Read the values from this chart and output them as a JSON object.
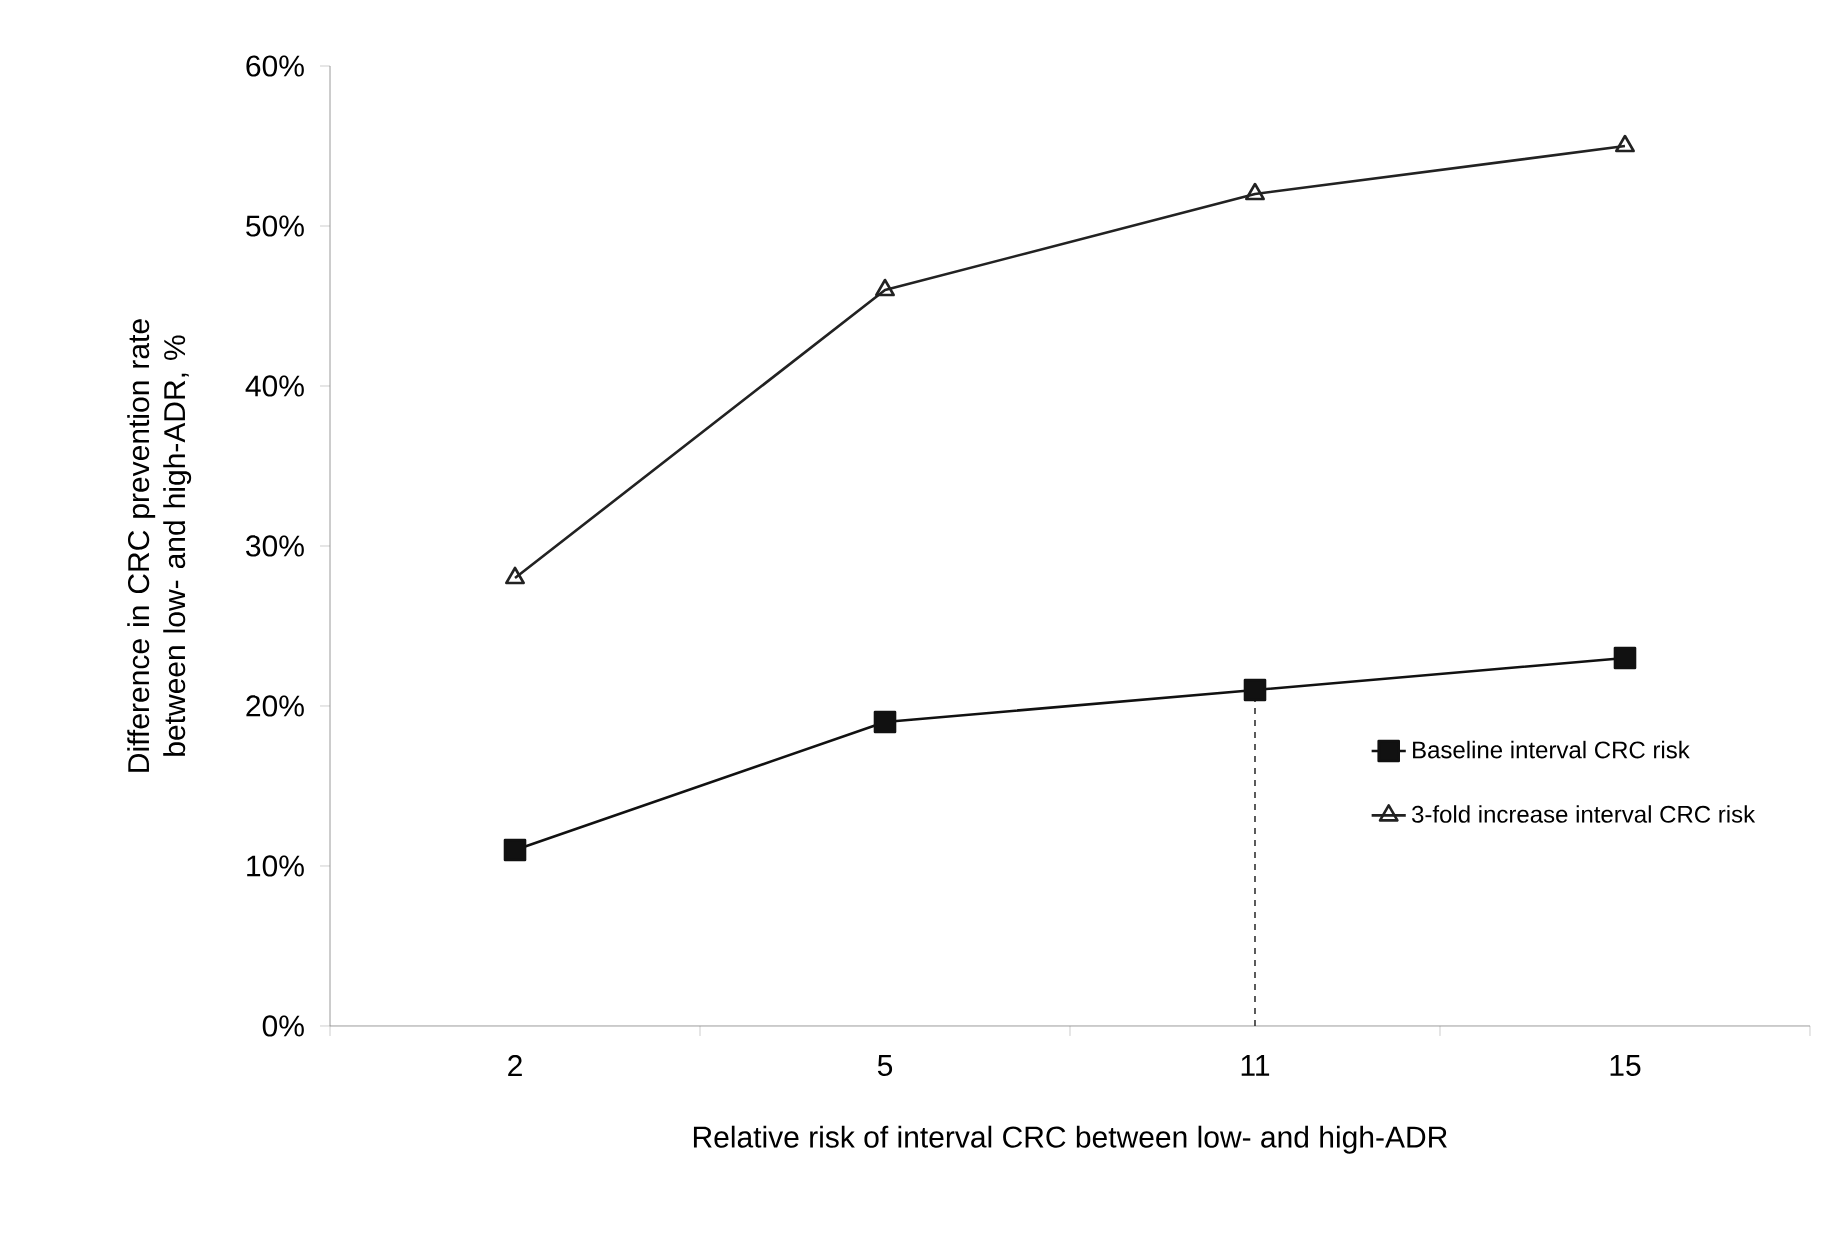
{
  "chart_data": {
    "type": "line",
    "xlabel": "Relative risk of interval CRC between low- and high-ADR",
    "ylabel": "Difference in CRC prevention rate between low- and high-ADR, %",
    "categories": [
      "2",
      "5",
      "11",
      "15"
    ],
    "series": [
      {
        "name": "Baseline interval CRC risk",
        "color": "#111111",
        "marker": "square",
        "values": [
          11,
          19,
          21,
          23
        ]
      },
      {
        "name": "3-fold increase interval CRC risk",
        "color": "#222222",
        "marker": "triangle",
        "values": [
          28,
          46,
          52,
          55
        ]
      }
    ],
    "ylim": [
      0,
      60
    ],
    "yticks": [
      {
        "value": 0,
        "label": "0%"
      },
      {
        "value": 10,
        "label": "10%"
      },
      {
        "value": 20,
        "label": "20%"
      },
      {
        "value": 30,
        "label": "30%"
      },
      {
        "value": 40,
        "label": "40%"
      },
      {
        "value": 50,
        "label": "50%"
      },
      {
        "value": 60,
        "label": "60%"
      }
    ],
    "ref_lines": [
      {
        "axis": "x",
        "value": "11",
        "line_style": "dashed",
        "color": "#333333"
      }
    ],
    "legend": "bottom right",
    "grid": false,
    "line_style": "solid"
  }
}
